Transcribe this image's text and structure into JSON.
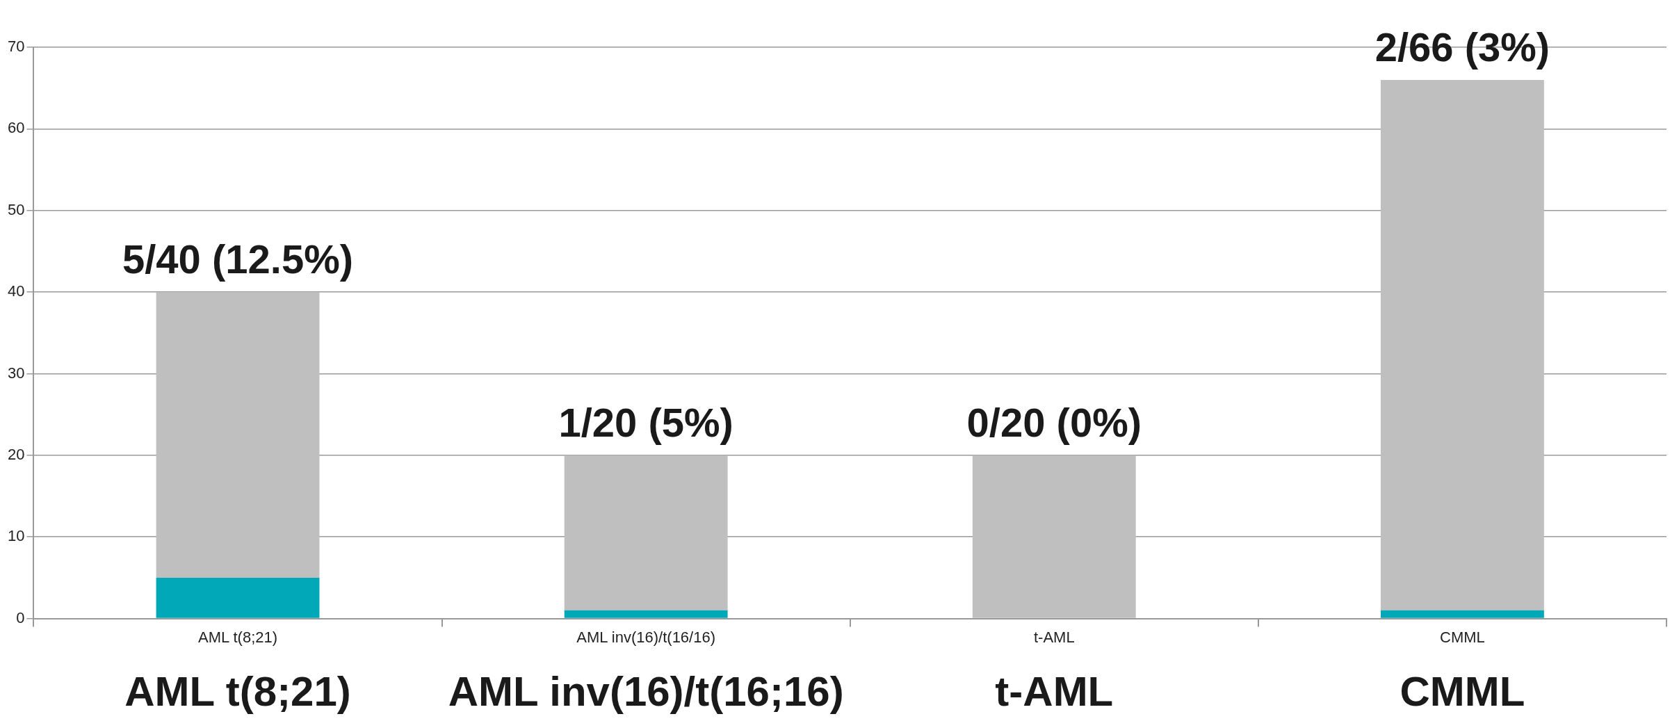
{
  "chart_data": {
    "type": "bar",
    "stacked": true,
    "categories": [
      "AML t(8;21)",
      "AML inv(16)/t(16/16)",
      "t-AML",
      "CMML"
    ],
    "series": [
      {
        "color": "#00a8b8",
        "values": [
          5,
          1,
          0,
          1
        ]
      },
      {
        "color": "#bfbfbf",
        "values": [
          35,
          19,
          20,
          65
        ]
      }
    ],
    "totals": [
      "5/40 (12.5%)",
      "1/20 (5%)",
      "0/20 (0%)",
      "2/66 (3%)"
    ],
    "annotations": [
      "AML t(8;21)",
      "AML inv(16)/t(16;16)",
      "t-AML",
      "CMML"
    ],
    "ylim": [
      0,
      70
    ],
    "yticks": [
      0,
      10,
      20,
      30,
      40,
      50,
      60,
      70
    ],
    "grid": "y",
    "legend": false
  }
}
